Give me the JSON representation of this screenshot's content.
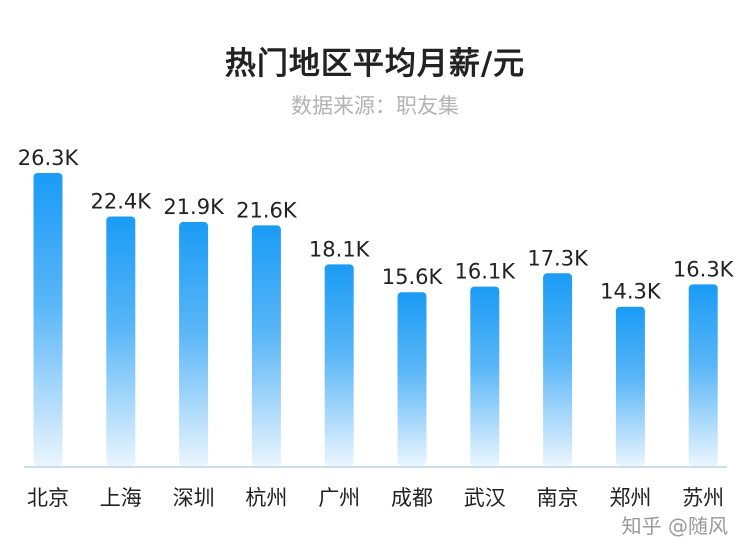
{
  "chart_data": {
    "type": "bar",
    "title": "热门地区平均月薪/元",
    "subtitle": "数据来源：职友集",
    "categories": [
      "北京",
      "上海",
      "深圳",
      "杭州",
      "广州",
      "成都",
      "武汉",
      "南京",
      "郑州",
      "苏州"
    ],
    "values": [
      26.3,
      22.4,
      21.9,
      21.6,
      18.1,
      15.6,
      16.1,
      17.3,
      14.3,
      16.3
    ],
    "value_labels": [
      "26.3K",
      "22.4K",
      "21.9K",
      "21.6K",
      "18.1K",
      "15.6K",
      "16.1K",
      "17.3K",
      "14.3K",
      "16.3K"
    ],
    "unit": "K",
    "ylim": [
      0,
      28
    ],
    "grid": false,
    "bar_color_top": "#1a9bf5",
    "bar_color_bottom": "#eaf5fe",
    "axis_color": "#c9dfee"
  },
  "watermark": "知乎 @随风"
}
